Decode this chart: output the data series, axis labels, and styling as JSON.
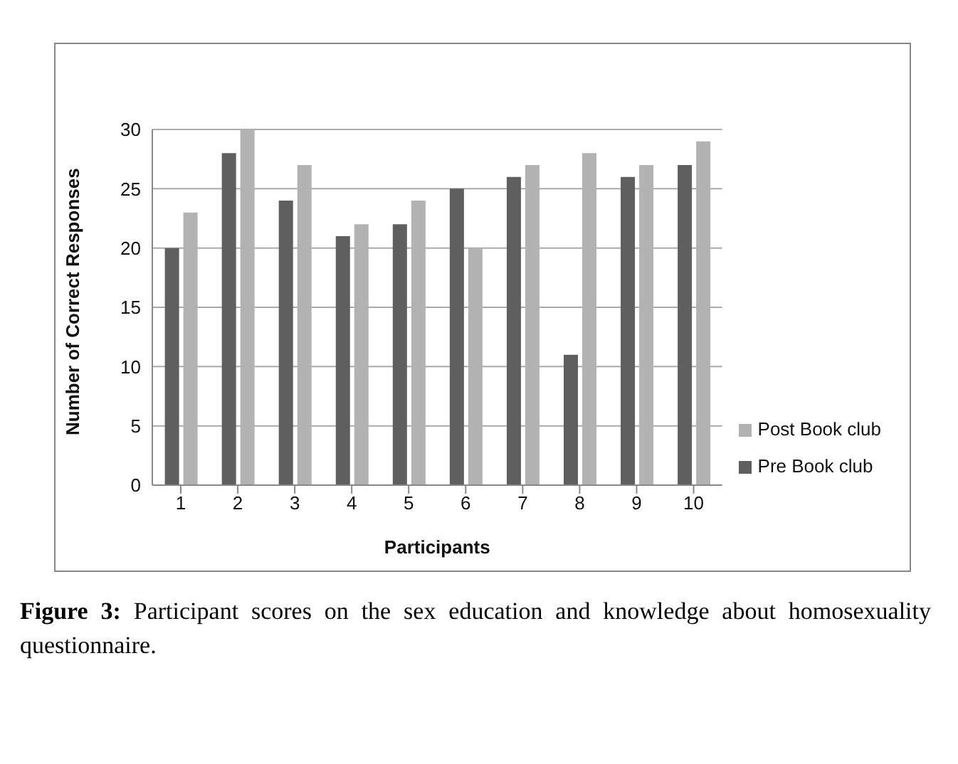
{
  "chart_data": {
    "type": "bar",
    "xlabel": "Participants",
    "ylabel": "Number of Correct Responses",
    "categories": [
      "1",
      "2",
      "3",
      "4",
      "5",
      "6",
      "7",
      "8",
      "9",
      "10"
    ],
    "series": [
      {
        "name": "Pre Book club",
        "color": "#5f5f5f",
        "values": [
          20,
          28,
          24,
          21,
          22,
          25,
          26,
          11,
          26,
          27
        ]
      },
      {
        "name": "Post Book club",
        "color": "#b2b2b2",
        "values": [
          23,
          30,
          27,
          22,
          24,
          20,
          27,
          28,
          27,
          29
        ]
      }
    ],
    "ylim": [
      0,
      30
    ],
    "yticks": [
      0,
      5,
      10,
      15,
      20,
      25,
      30
    ],
    "grid": "y",
    "legend": "right",
    "annotations": [
      "Figure 3: Participant scores on the sex education and knowledge about homosexuality questionnaire."
    ]
  }
}
